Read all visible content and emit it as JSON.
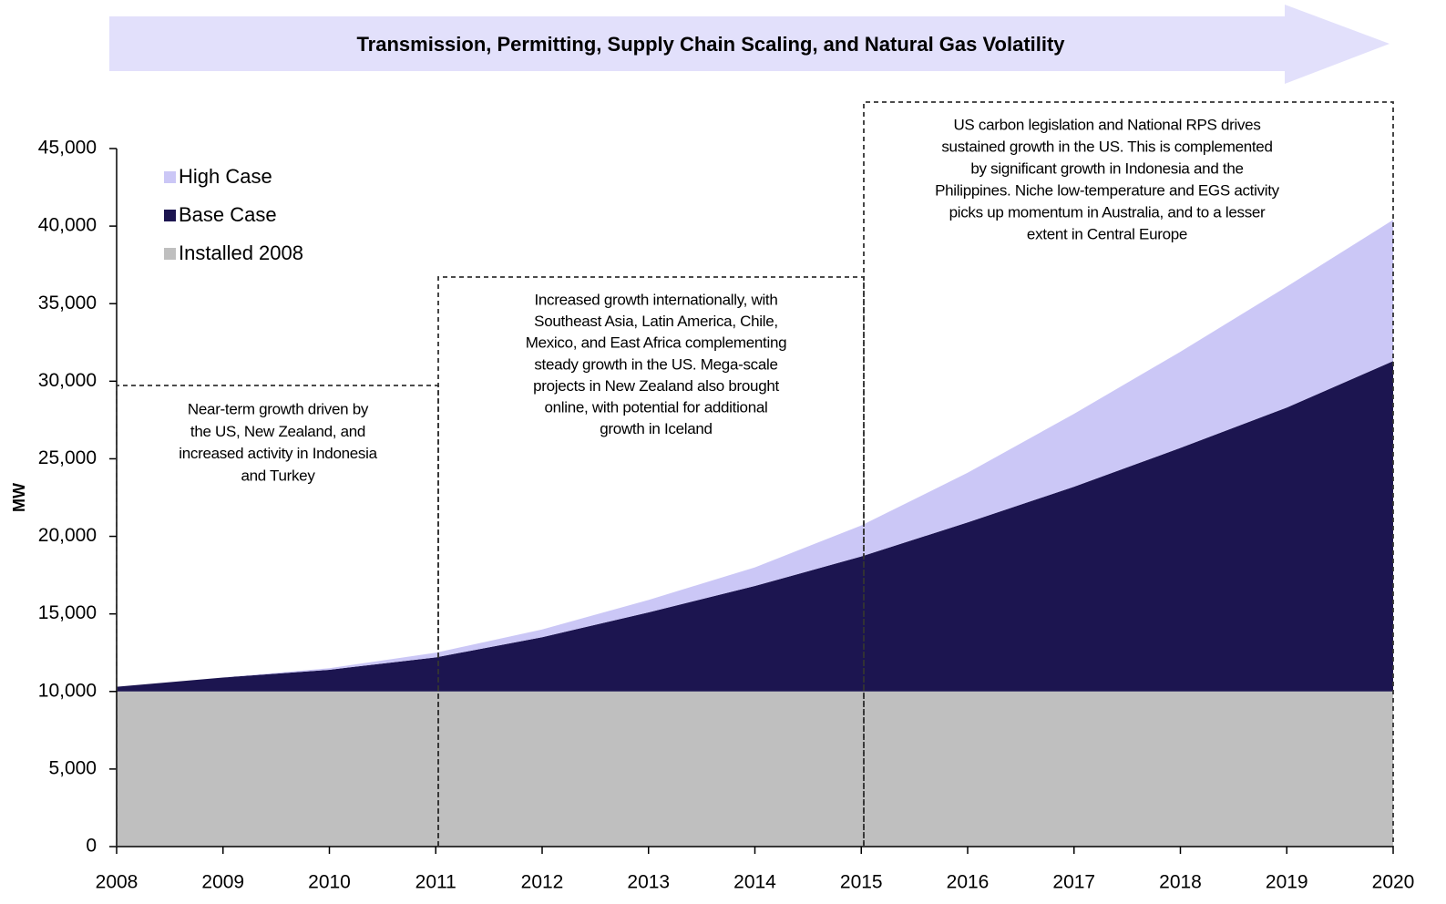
{
  "chart_data": {
    "type": "stacked_area",
    "banner": "Transmission, Permitting, Supply Chain Scaling, and Natural  Gas Volatility",
    "y_label": "MW",
    "x": [
      2008,
      2009,
      2010,
      2011,
      2012,
      2013,
      2014,
      2015,
      2016,
      2017,
      2018,
      2019,
      2020
    ],
    "series": [
      {
        "name": "Installed 2008",
        "color": "#bfbfbf",
        "values": [
          10000,
          10000,
          10000,
          10000,
          10000,
          10000,
          10000,
          10000,
          10000,
          10000,
          10000,
          10000,
          10000
        ]
      },
      {
        "name": "Base Case",
        "color": "#1c1550",
        "values": [
          300,
          900,
          1400,
          2200,
          3500,
          5100,
          6800,
          8700,
          10900,
          13200,
          15700,
          18300,
          21300
        ]
      },
      {
        "name": "High Case",
        "color": "#cbc7f6",
        "values": [
          0,
          0,
          100,
          300,
          500,
          800,
          1200,
          2000,
          3200,
          4700,
          6200,
          7800,
          9100
        ]
      }
    ],
    "xlim": [
      2008,
      2020
    ],
    "xticks": [
      2008,
      2009,
      2010,
      2011,
      2012,
      2013,
      2014,
      2015,
      2016,
      2017,
      2018,
      2019,
      2020
    ],
    "ylim": [
      0,
      45000
    ],
    "yticks": [
      0,
      {
        "value": 5000,
        "label": "5,000"
      },
      {
        "value": 10000,
        "label": "10,000"
      },
      {
        "value": 15000,
        "label": "15,000"
      },
      {
        "value": 20000,
        "label": "20,000"
      },
      {
        "value": 25000,
        "label": "25,000"
      },
      {
        "value": 30000,
        "label": "30,000"
      },
      {
        "value": 35000,
        "label": "35,000"
      },
      {
        "value": 40000,
        "label": "40,000"
      },
      {
        "value": 45000,
        "label": "45,000"
      }
    ],
    "legend": "top-left",
    "annotations": [
      [
        "Near-term growth driven by",
        "the US, New Zealand, and",
        "increased activity in Indonesia",
        "and Turkey"
      ],
      [
        "Increased growth internationally, with",
        "Southeast Asia, Latin America, Chile,",
        "Mexico, and East Africa complementing",
        "steady growth in the US.  Mega-scale",
        "projects in New Zealand also brought",
        "online, with potential for additional",
        "growth in Iceland"
      ],
      [
        "US carbon legislation and National RPS drives",
        "sustained growth in the US.  This is complemented",
        "by significant growth in Indonesia and the",
        "Philippines.  Niche low-temperature and EGS activity",
        "picks up momentum in Australia, and to a lesser",
        "extent in Central Europe"
      ]
    ]
  }
}
